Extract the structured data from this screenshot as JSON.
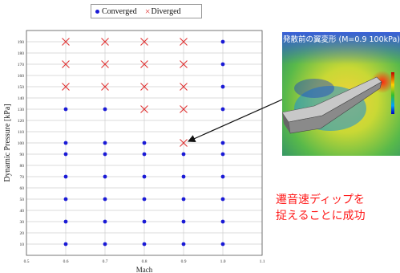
{
  "chart_data": {
    "type": "scatter",
    "xlabel": "Mach",
    "ylabel": "Dynamic Pressure [kPa]",
    "xlim": [
      0.5,
      1.1
    ],
    "ylim": [
      0,
      200
    ],
    "xticks": [
      "0.5",
      "0.6",
      "0.7",
      "0.8",
      "0.9",
      "1.0",
      "1.1"
    ],
    "yticks": [
      "10",
      "20",
      "30",
      "40",
      "50",
      "60",
      "70",
      "80",
      "90",
      "100",
      "110",
      "120",
      "130",
      "140",
      "150",
      "160",
      "170",
      "180",
      "190"
    ],
    "grid": true,
    "legend_position": "top",
    "series": [
      {
        "name": "Converged",
        "marker": "dot",
        "color": "#1a1ad6",
        "points": [
          [
            0.6,
            10
          ],
          [
            0.6,
            30
          ],
          [
            0.6,
            50
          ],
          [
            0.6,
            70
          ],
          [
            0.6,
            90
          ],
          [
            0.6,
            100
          ],
          [
            0.6,
            130
          ],
          [
            0.7,
            10
          ],
          [
            0.7,
            30
          ],
          [
            0.7,
            50
          ],
          [
            0.7,
            70
          ],
          [
            0.7,
            90
          ],
          [
            0.7,
            100
          ],
          [
            0.7,
            130
          ],
          [
            0.8,
            10
          ],
          [
            0.8,
            30
          ],
          [
            0.8,
            50
          ],
          [
            0.8,
            70
          ],
          [
            0.8,
            90
          ],
          [
            0.8,
            100
          ],
          [
            0.9,
            10
          ],
          [
            0.9,
            30
          ],
          [
            0.9,
            50
          ],
          [
            0.9,
            70
          ],
          [
            0.9,
            90
          ],
          [
            1.0,
            10
          ],
          [
            1.0,
            30
          ],
          [
            1.0,
            50
          ],
          [
            1.0,
            70
          ],
          [
            1.0,
            90
          ],
          [
            1.0,
            100
          ],
          [
            1.0,
            130
          ],
          [
            1.0,
            150
          ],
          [
            1.0,
            170
          ],
          [
            1.0,
            190
          ]
        ]
      },
      {
        "name": "Diverged",
        "marker": "x",
        "color": "#e03030",
        "points": [
          [
            0.6,
            150
          ],
          [
            0.6,
            170
          ],
          [
            0.6,
            190
          ],
          [
            0.7,
            150
          ],
          [
            0.7,
            170
          ],
          [
            0.7,
            190
          ],
          [
            0.8,
            130
          ],
          [
            0.8,
            150
          ],
          [
            0.8,
            170
          ],
          [
            0.8,
            190
          ],
          [
            0.9,
            100
          ],
          [
            0.9,
            130
          ],
          [
            0.9,
            150
          ],
          [
            0.9,
            170
          ],
          [
            0.9,
            190
          ]
        ]
      }
    ],
    "annotation": {
      "from_point": [
        0.9,
        100
      ]
    }
  },
  "inset": {
    "title": "発散前の翼変形 (M=0.9 100kPa)"
  },
  "caption": {
    "line1": "遷音速ディップを",
    "line2": "捉えることに成功"
  }
}
